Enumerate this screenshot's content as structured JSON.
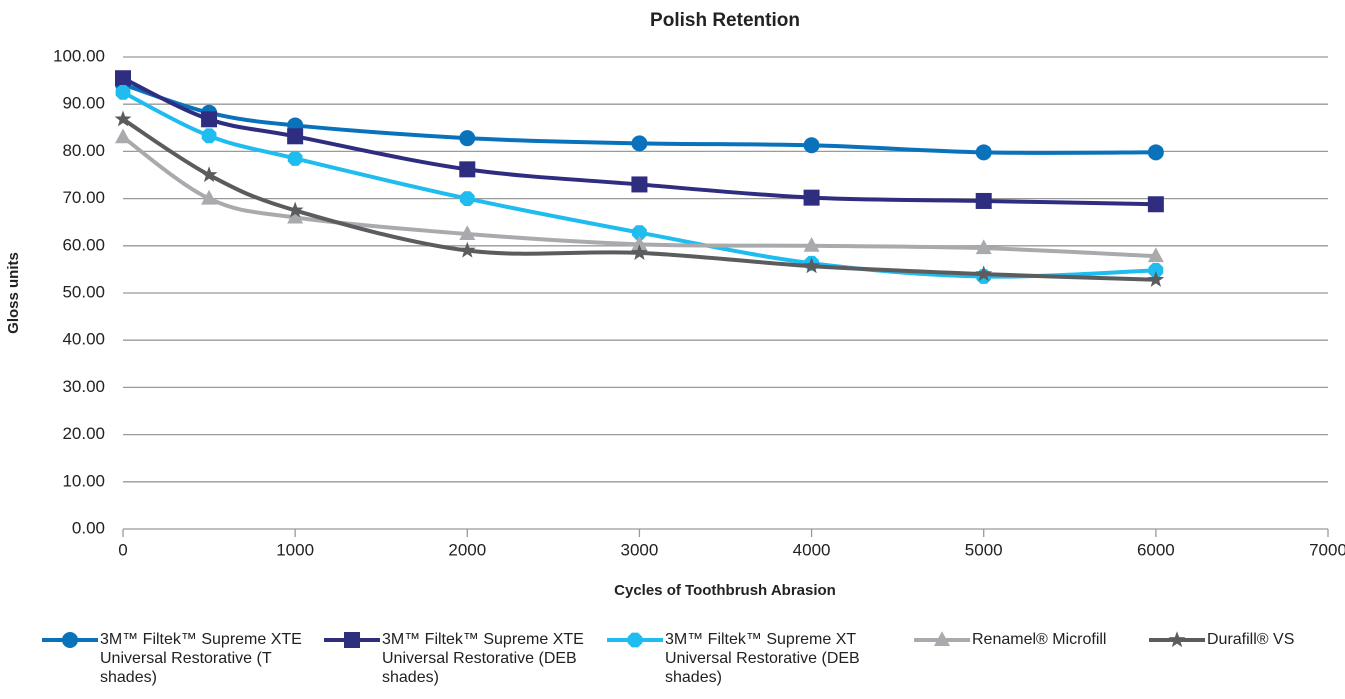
{
  "chart_data": {
    "type": "line",
    "title": "Polish Retention",
    "x_label": "Cycles of Toothbrush Abrasion",
    "y_label": "Gloss units",
    "x": [
      0,
      500,
      1000,
      2000,
      3000,
      4000,
      5000,
      6000
    ],
    "series": [
      {
        "name": "3M™ Filtek™ Supreme XTE Universal Restorative (T shades)",
        "color": "#0a72ba",
        "marker": "circle",
        "values": [
          94.2,
          88.2,
          85.5,
          82.8,
          81.7,
          81.3,
          79.8,
          79.8
        ]
      },
      {
        "name": "3M™ Filtek™ Supreme XTE Universal Restorative (DEB shades)",
        "color": "#2e2d80",
        "marker": "square",
        "values": [
          95.5,
          86.8,
          83.2,
          76.2,
          73.0,
          70.2,
          69.5,
          68.8
        ]
      },
      {
        "name": "3M™ Filtek™ Supreme XT Universal Restorative (DEB shades)",
        "color": "#1fbcef",
        "marker": "hexagon",
        "values": [
          92.5,
          83.3,
          78.5,
          70.0,
          62.8,
          56.3,
          53.5,
          54.8
        ]
      },
      {
        "name": "Renamel® Microfill",
        "color": "#a8aaad",
        "marker": "triangle",
        "values": [
          83.0,
          70.0,
          66.0,
          62.5,
          60.3,
          60.0,
          59.5,
          57.8
        ]
      },
      {
        "name": "Durafill® VS",
        "color": "#5b5c5e",
        "marker": "star",
        "values": [
          86.8,
          75.0,
          67.5,
          59.0,
          58.5,
          55.7,
          54.0,
          52.8
        ]
      }
    ],
    "xlim": [
      0,
      7000
    ],
    "xticks": [
      0,
      1000,
      2000,
      3000,
      4000,
      5000,
      6000,
      7000
    ],
    "ylim": [
      0,
      100
    ],
    "yticks": [
      {
        "value": 0,
        "label": "0.00"
      },
      {
        "value": 10,
        "label": "10.00"
      },
      {
        "value": 20,
        "label": "20.00"
      },
      {
        "value": 30,
        "label": "30.00"
      },
      {
        "value": 40,
        "label": "40.00"
      },
      {
        "value": 50,
        "label": "50.00"
      },
      {
        "value": 60,
        "label": "60.00"
      },
      {
        "value": 70,
        "label": "70.00"
      },
      {
        "value": 80,
        "label": "80.00"
      },
      {
        "value": 90,
        "label": "90.00"
      },
      {
        "value": 100,
        "label": "100.00"
      }
    ],
    "grid": true,
    "legend": "bottom"
  }
}
